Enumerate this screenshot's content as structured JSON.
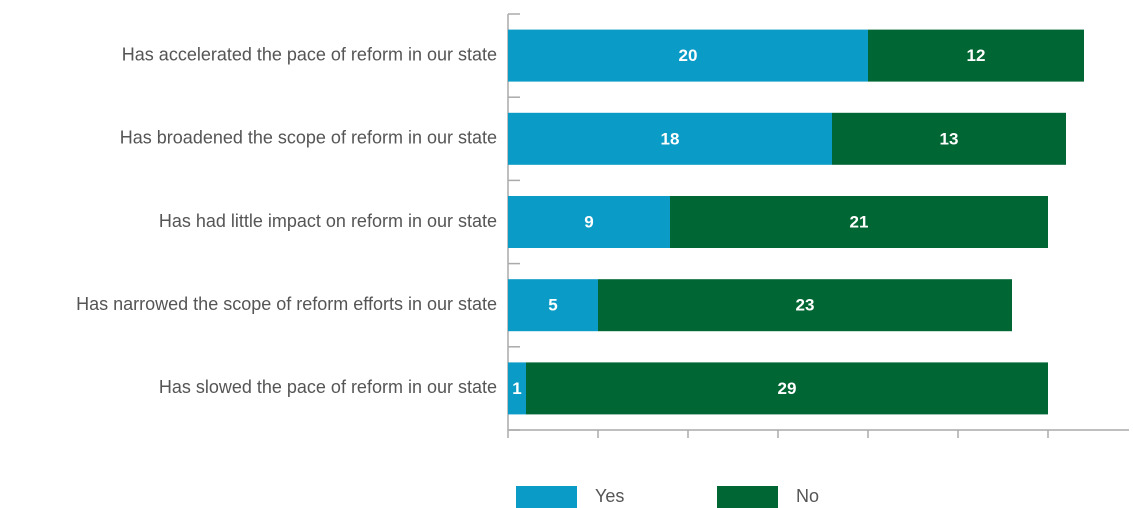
{
  "chart_data": {
    "type": "stacked-bar-horizontal",
    "categories": [
      "Has accelerated the pace of reform in our state",
      "Has broadened the scope of reform in our state",
      "Has had little impact on reform in our state",
      "Has narrowed the scope of reform efforts in our state",
      "Has slowed the pace of reform in our state"
    ],
    "series": [
      {
        "name": "Yes",
        "color": "#0a9bc6",
        "values": [
          20,
          18,
          9,
          5,
          1
        ]
      },
      {
        "name": "No",
        "color": "#006633",
        "values": [
          12,
          13,
          21,
          23,
          29
        ]
      }
    ],
    "xlim": [
      0,
      34.5
    ],
    "xticks": [
      0,
      5,
      10,
      15,
      20,
      25,
      30
    ],
    "legend": "bottom"
  }
}
